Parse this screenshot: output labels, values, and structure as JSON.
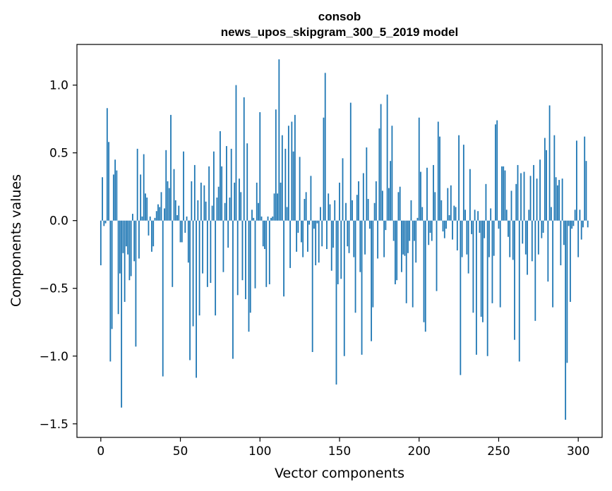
{
  "chart_data": {
    "type": "bar",
    "title": [
      "consob",
      "news_upos_skipgram_300_5_2019 model"
    ],
    "xlabel": "Vector components",
    "ylabel": "Components values",
    "xlim": [
      -15,
      315
    ],
    "ylim": [
      -1.6,
      1.3
    ],
    "xticks": [
      0,
      50,
      100,
      150,
      200,
      250,
      300
    ],
    "xtick_labels": [
      "0",
      "50",
      "100",
      "150",
      "200",
      "250",
      "300"
    ],
    "yticks": [
      -1.5,
      -1.0,
      -0.5,
      0.0,
      0.5,
      1.0
    ],
    "ytick_labels": [
      "−1.5",
      "−1.0",
      "−0.5",
      "0.0",
      "0.5",
      "1.0"
    ],
    "bar_color": "#1f77b4",
    "x_start": 0,
    "values": [
      -0.33,
      0.32,
      -0.04,
      -0.02,
      0.83,
      0.58,
      -1.04,
      -0.8,
      0.34,
      0.45,
      0.37,
      -0.69,
      -0.39,
      -1.38,
      -0.24,
      -0.6,
      -0.19,
      -0.25,
      -0.44,
      -0.41,
      0.05,
      -0.3,
      -0.93,
      0.53,
      -0.28,
      0.34,
      0.03,
      0.49,
      0.2,
      0.17,
      -0.11,
      0.03,
      -0.23,
      -0.19,
      0.02,
      0.07,
      0.12,
      0.1,
      0.21,
      -1.15,
      0.09,
      0.52,
      0.29,
      0.24,
      0.78,
      -0.49,
      0.38,
      0.15,
      0.04,
      0.11,
      -0.16,
      -0.16,
      0.51,
      -0.09,
      0.03,
      -0.31,
      -1.03,
      0.29,
      -0.78,
      0.41,
      -1.16,
      0.15,
      -0.7,
      0.28,
      -0.39,
      0.26,
      0.14,
      -0.49,
      0.4,
      -0.46,
      0.11,
      0.51,
      -0.7,
      0.17,
      0.25,
      0.66,
      0.4,
      -0.38,
      0.13,
      0.55,
      -0.2,
      0.17,
      0.53,
      -1.02,
      0.28,
      1.0,
      -0.55,
      0.31,
      0.21,
      -0.44,
      0.91,
      -0.58,
      0.57,
      -0.82,
      -0.68,
      0.08,
      0.02,
      -0.5,
      0.28,
      0.13,
      0.8,
      0.03,
      -0.19,
      -0.21,
      -0.49,
      0.03,
      -0.47,
      0.02,
      0.03,
      0.2,
      0.82,
      0.2,
      1.19,
      0.28,
      0.63,
      -0.56,
      0.53,
      0.1,
      0.7,
      -0.35,
      0.73,
      0.51,
      0.78,
      -0.23,
      -0.09,
      0.47,
      -0.16,
      -0.27,
      0.16,
      0.21,
      -0.23,
      -0.03,
      0.33,
      -0.97,
      -0.06,
      -0.33,
      -0.02,
      -0.31,
      0.1,
      -0.19,
      0.76,
      1.09,
      -0.21,
      0.2,
      0.12,
      -0.37,
      -0.2,
      0.15,
      -1.21,
      -0.47,
      0.28,
      -0.43,
      0.46,
      -1.0,
      0.13,
      -0.19,
      -0.24,
      0.87,
      0.15,
      -0.27,
      -0.68,
      0.19,
      0.29,
      -0.38,
      -0.99,
      0.35,
      -0.25,
      0.54,
      0.16,
      -0.06,
      -0.89,
      -0.64,
      0.13,
      0.29,
      -0.28,
      0.68,
      0.86,
      0.22,
      -0.27,
      -0.07,
      0.93,
      0.24,
      0.44,
      0.7,
      -0.15,
      -0.47,
      -0.44,
      0.21,
      0.25,
      -0.38,
      -0.25,
      -0.26,
      -0.61,
      -0.24,
      -0.15,
      0.15,
      -0.64,
      -0.15,
      -0.31,
      0.02,
      0.76,
      0.36,
      0.1,
      -0.75,
      -0.82,
      0.39,
      -0.18,
      -0.09,
      -0.15,
      0.41,
      0.21,
      -0.52,
      0.73,
      0.62,
      0.15,
      -0.08,
      -0.13,
      -0.06,
      0.24,
      0.04,
      0.26,
      -0.14,
      0.11,
      0.1,
      -0.22,
      0.63,
      -1.14,
      -0.27,
      0.56,
      0.08,
      -0.25,
      -0.39,
      0.38,
      -0.1,
      -0.68,
      0.08,
      -0.99,
      0.07,
      -0.09,
      -0.71,
      -0.75,
      -0.13,
      0.27,
      -1.0,
      -0.27,
      0.09,
      -0.61,
      -0.26,
      0.71,
      0.74,
      -0.06,
      -0.64,
      0.4,
      0.4,
      0.37,
      0.08,
      -0.12,
      -0.27,
      0.22,
      -0.29,
      -0.88,
      0.27,
      0.41,
      -1.04,
      0.35,
      -0.17,
      0.36,
      -0.25,
      -0.4,
      0.08,
      0.33,
      -0.3,
      0.41,
      -0.74,
      0.31,
      -0.25,
      0.45,
      -0.13,
      -0.09,
      0.61,
      0.52,
      -0.45,
      0.85,
      0.1,
      -0.64,
      0.63,
      0.32,
      0.26,
      0.3,
      -0.33,
      0.31,
      -0.18,
      -1.47,
      -1.05,
      -0.04,
      -0.6,
      -0.06,
      -0.04,
      0.08,
      0.59,
      -0.27,
      0.08,
      -0.14,
      -0.05,
      0.62,
      0.44,
      -0.05
    ]
  }
}
